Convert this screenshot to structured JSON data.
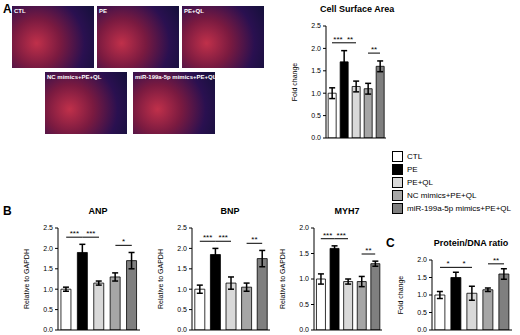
{
  "figure": {
    "panel_labels": [
      "A",
      "B",
      "C"
    ],
    "image_labels": [
      "CTL",
      "PE",
      "PE+QL",
      "NC mimics+PE+QL",
      "miR-199a-5p mimics+PE+QL"
    ]
  },
  "chart_data": [
    {
      "type": "bar",
      "title": "Cell Surface Area",
      "y_label": "Fold change",
      "categories": [
        "CTL",
        "PE",
        "PE+QL",
        "NC mimics+PE+QL",
        "miR-199a-5p mimics+PE+QL"
      ],
      "values": [
        1.0,
        1.7,
        1.15,
        1.1,
        1.6
      ],
      "errors": [
        0.12,
        0.25,
        0.12,
        0.12,
        0.12
      ],
      "colors": [
        "#ffffff",
        "#000000",
        "#d9d9d9",
        "#a6a6a6",
        "#7f7f7f"
      ],
      "ylim": [
        0,
        2.5
      ],
      "yticks": [
        {
          "value": 0,
          "label": "0.0"
        },
        0.5,
        {
          "value": 1,
          "label": "1.0"
        },
        1.5,
        {
          "value": 2,
          "label": "2.0"
        },
        2.5
      ],
      "grid": false,
      "tick_labels": "y",
      "legend": "right",
      "annotations": [
        {
          "from": 0,
          "to": 1,
          "label": "***"
        },
        {
          "from": 1,
          "to": 2,
          "label": "**"
        },
        {
          "from": 3,
          "to": 4,
          "label": "**"
        }
      ]
    },
    {
      "type": "bar",
      "title": "ANP",
      "y_label": "Relative to GAPDH",
      "categories": [
        "CTL",
        "PE",
        "PE+QL",
        "NC mimics+PE+QL",
        "miR-199a-5p mimics+PE+QL"
      ],
      "values": [
        1.0,
        1.9,
        1.15,
        1.3,
        1.7
      ],
      "errors": [
        0.05,
        0.2,
        0.05,
        0.1,
        0.2
      ],
      "colors": [
        "#ffffff",
        "#000000",
        "#d9d9d9",
        "#a6a6a6",
        "#7f7f7f"
      ],
      "ylim": [
        0,
        2.5
      ],
      "yticks": [
        {
          "value": 0,
          "label": "0.0"
        },
        0.5,
        {
          "value": 1,
          "label": "1.0"
        },
        1.5,
        {
          "value": 2,
          "label": "2.0"
        },
        2.5
      ],
      "grid": false,
      "tick_labels": "y",
      "annotations": [
        {
          "from": 0,
          "to": 1,
          "label": "***"
        },
        {
          "from": 1,
          "to": 2,
          "label": "***"
        },
        {
          "from": 3,
          "to": 4,
          "label": "*"
        }
      ]
    },
    {
      "type": "bar",
      "title": "BNP",
      "y_label": "Relative to GAPDH",
      "categories": [
        "CTL",
        "PE",
        "PE+QL",
        "NC mimics+PE+QL",
        "miR-199a-5p mimics+PE+QL"
      ],
      "values": [
        1.0,
        1.85,
        1.15,
        1.05,
        1.75
      ],
      "errors": [
        0.1,
        0.15,
        0.15,
        0.1,
        0.2
      ],
      "colors": [
        "#ffffff",
        "#000000",
        "#d9d9d9",
        "#a6a6a6",
        "#7f7f7f"
      ],
      "ylim": [
        0,
        2.5
      ],
      "yticks": [
        {
          "value": 0,
          "label": "0.0"
        },
        0.5,
        {
          "value": 1,
          "label": "1.0"
        },
        1.5,
        {
          "value": 2,
          "label": "2.0"
        },
        2.5
      ],
      "grid": false,
      "tick_labels": "y",
      "annotations": [
        {
          "from": 0,
          "to": 1,
          "label": "***"
        },
        {
          "from": 1,
          "to": 2,
          "label": "***"
        },
        {
          "from": 3,
          "to": 4,
          "label": "**"
        }
      ]
    },
    {
      "type": "bar",
      "title": "MYH7",
      "y_label": "Relative to GAPDH",
      "categories": [
        "CTL",
        "PE",
        "PE+QL",
        "NC mimics+PE+QL",
        "miR-199a-5p mimics+PE+QL"
      ],
      "values": [
        1.0,
        1.6,
        0.95,
        0.95,
        1.3
      ],
      "errors": [
        0.1,
        0.05,
        0.05,
        0.1,
        0.05
      ],
      "colors": [
        "#ffffff",
        "#000000",
        "#d9d9d9",
        "#a6a6a6",
        "#7f7f7f"
      ],
      "ylim": [
        0,
        2.0
      ],
      "yticks": [
        {
          "value": 0,
          "label": "0.0"
        },
        0.5,
        {
          "value": 1,
          "label": "1.0"
        },
        1.5,
        {
          "value": 2,
          "label": "2.0"
        }
      ],
      "grid": false,
      "tick_labels": "y",
      "annotations": [
        {
          "from": 0,
          "to": 1,
          "label": "***"
        },
        {
          "from": 1,
          "to": 2,
          "label": "***"
        },
        {
          "from": 3,
          "to": 4,
          "label": "**"
        }
      ]
    },
    {
      "type": "bar",
      "title": "Protein/DNA ratio",
      "y_label": "Fold change",
      "categories": [
        "CTL",
        "PE",
        "PE+QL",
        "NC mimics+PE+QL",
        "miR-199a-5p mimics+PE+QL"
      ],
      "values": [
        1.0,
        1.5,
        1.05,
        1.15,
        1.6
      ],
      "errors": [
        0.1,
        0.15,
        0.2,
        0.05,
        0.15
      ],
      "colors": [
        "#ffffff",
        "#000000",
        "#d9d9d9",
        "#a6a6a6",
        "#7f7f7f"
      ],
      "ylim": [
        0,
        2.0
      ],
      "yticks": [
        {
          "value": 0,
          "label": "0.0"
        },
        0.5,
        {
          "value": 1,
          "label": "1.0"
        },
        1.5,
        {
          "value": 2,
          "label": "2.0"
        }
      ],
      "grid": false,
      "tick_labels": "y",
      "annotations": [
        {
          "from": 0,
          "to": 1,
          "label": "*"
        },
        {
          "from": 1,
          "to": 2,
          "label": "*"
        },
        {
          "from": 3,
          "to": 4,
          "label": "**"
        }
      ]
    }
  ]
}
